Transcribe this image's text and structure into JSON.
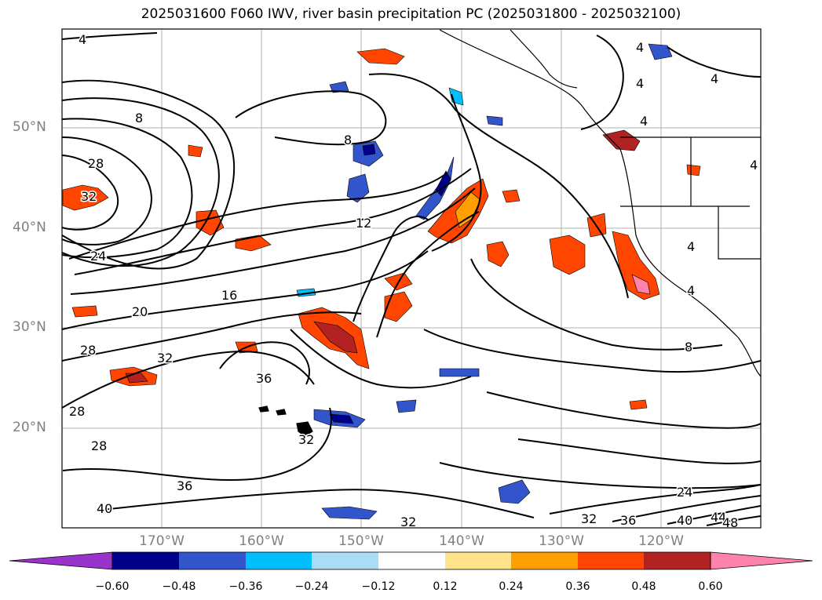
{
  "title": "2025031600 F060 IWV, river basin precipitation PC (2025031800 - 2025032100)",
  "lat_labels": [
    "50°N",
    "40°N",
    "30°N",
    "20°N"
  ],
  "lon_labels": [
    "170°W",
    "160°W",
    "150°W",
    "140°W",
    "130°W",
    "120°W"
  ],
  "colorbar": {
    "tick_labels": [
      "−0.60",
      "−0.48",
      "−0.36",
      "−0.24",
      "−0.12",
      "0.12",
      "0.24",
      "0.36",
      "0.48",
      "0.60"
    ],
    "colors": [
      "#9933cc",
      "#00008b",
      "#3355cc",
      "#00bfff",
      "#aaddf5",
      "#ffffff",
      "#fee38a",
      "#ff9f00",
      "#ff4500",
      "#b22222",
      "#ff82ab"
    ]
  },
  "contour_labels": [
    "4",
    "8",
    "12",
    "16",
    "20",
    "24",
    "28",
    "32",
    "36",
    "40",
    "44",
    "48"
  ]
}
